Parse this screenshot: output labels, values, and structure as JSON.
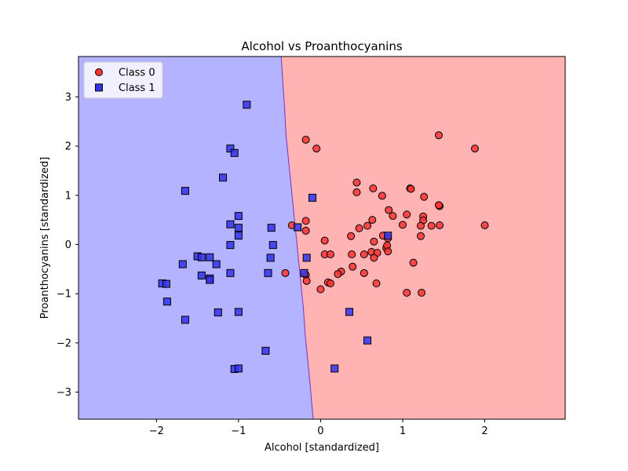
{
  "chart_data": {
    "type": "scatter",
    "title": "Alcohol vs Proanthocyanins",
    "xlabel": "Alcohol [standardized]",
    "ylabel": "Proanthocyanins [standardized]",
    "xlim": [
      -2.95,
      2.98
    ],
    "ylim": [
      -3.55,
      3.82
    ],
    "xticks": [
      -2,
      -1,
      0,
      1,
      2
    ],
    "yticks": [
      -3,
      -2,
      -1,
      0,
      1,
      2,
      3
    ],
    "legend_position": "top-left",
    "colors": {
      "class0_region": "#ffb3b3",
      "class1_region": "#b3b3ff",
      "class0_marker": "#ff3333",
      "class1_marker": "#3333ee",
      "boundary": "#7733cc",
      "marker_edge": "#000000"
    },
    "decision_boundary": [
      {
        "x": -0.48,
        "y": 3.82
      },
      {
        "x": -0.46,
        "y": 3.3
      },
      {
        "x": -0.44,
        "y": 2.8
      },
      {
        "x": -0.42,
        "y": 2.2
      },
      {
        "x": -0.39,
        "y": 1.7
      },
      {
        "x": -0.36,
        "y": 1.2
      },
      {
        "x": -0.33,
        "y": 0.7
      },
      {
        "x": -0.3,
        "y": 0.2
      },
      {
        "x": -0.27,
        "y": -0.3
      },
      {
        "x": -0.24,
        "y": -0.8
      },
      {
        "x": -0.21,
        "y": -1.3
      },
      {
        "x": -0.19,
        "y": -1.8
      },
      {
        "x": -0.16,
        "y": -2.3
      },
      {
        "x": -0.13,
        "y": -2.8
      },
      {
        "x": -0.11,
        "y": -3.2
      },
      {
        "x": -0.09,
        "y": -3.55
      }
    ],
    "series": [
      {
        "name": "Class 0",
        "marker": "circle",
        "points": [
          {
            "x": -0.18,
            "y": 2.13
          },
          {
            "x": -0.05,
            "y": 1.95
          },
          {
            "x": 1.44,
            "y": 2.22
          },
          {
            "x": 1.88,
            "y": 1.95
          },
          {
            "x": 0.44,
            "y": 1.26
          },
          {
            "x": 0.44,
            "y": 1.06
          },
          {
            "x": 0.64,
            "y": 1.14
          },
          {
            "x": 0.75,
            "y": 0.99
          },
          {
            "x": 1.09,
            "y": 1.14
          },
          {
            "x": 1.1,
            "y": 1.13
          },
          {
            "x": 1.26,
            "y": 0.97
          },
          {
            "x": 1.45,
            "y": 0.78
          },
          {
            "x": 1.44,
            "y": 0.8
          },
          {
            "x": 0.83,
            "y": 0.7
          },
          {
            "x": 0.88,
            "y": 0.58
          },
          {
            "x": 0.63,
            "y": 0.5
          },
          {
            "x": 1.05,
            "y": 0.61
          },
          {
            "x": 1.25,
            "y": 0.57
          },
          {
            "x": 1.25,
            "y": 0.49
          },
          {
            "x": 1.22,
            "y": 0.38
          },
          {
            "x": 1.35,
            "y": 0.38
          },
          {
            "x": 1.45,
            "y": 0.39
          },
          {
            "x": 2.0,
            "y": 0.39
          },
          {
            "x": 1.0,
            "y": 0.4
          },
          {
            "x": 0.57,
            "y": 0.38
          },
          {
            "x": 0.47,
            "y": 0.33
          },
          {
            "x": -0.35,
            "y": 0.39
          },
          {
            "x": -0.18,
            "y": 0.48
          },
          {
            "x": -0.18,
            "y": 0.28
          },
          {
            "x": 0.37,
            "y": 0.17
          },
          {
            "x": 0.76,
            "y": 0.18
          },
          {
            "x": 0.82,
            "y": 0.13
          },
          {
            "x": 0.05,
            "y": 0.08
          },
          {
            "x": 0.65,
            "y": 0.06
          },
          {
            "x": 0.8,
            "y": -0.07
          },
          {
            "x": 1.22,
            "y": 0.17
          },
          {
            "x": 0.81,
            "y": -0.02
          },
          {
            "x": 0.62,
            "y": -0.15
          },
          {
            "x": 0.69,
            "y": -0.17
          },
          {
            "x": 0.82,
            "y": -0.14
          },
          {
            "x": 0.53,
            "y": -0.2
          },
          {
            "x": 0.38,
            "y": -0.2
          },
          {
            "x": 0.05,
            "y": -0.2
          },
          {
            "x": 0.12,
            "y": -0.2
          },
          {
            "x": 0.65,
            "y": -0.27
          },
          {
            "x": 1.13,
            "y": -0.37
          },
          {
            "x": 0.39,
            "y": -0.45
          },
          {
            "x": 0.25,
            "y": -0.55
          },
          {
            "x": 0.21,
            "y": -0.6
          },
          {
            "x": 0.53,
            "y": -0.58
          },
          {
            "x": -0.43,
            "y": -0.58
          },
          {
            "x": -0.18,
            "y": -0.62
          },
          {
            "x": -0.17,
            "y": -0.74
          },
          {
            "x": 0.09,
            "y": -0.77
          },
          {
            "x": 0.12,
            "y": -0.79
          },
          {
            "x": 0.68,
            "y": -0.79
          },
          {
            "x": 0.0,
            "y": -0.91
          },
          {
            "x": 1.05,
            "y": -0.98
          },
          {
            "x": 1.23,
            "y": -0.98
          }
        ]
      },
      {
        "name": "Class 1",
        "marker": "square",
        "points": [
          {
            "x": -0.9,
            "y": 2.84
          },
          {
            "x": -1.1,
            "y": 1.95
          },
          {
            "x": -1.05,
            "y": 1.86
          },
          {
            "x": -1.19,
            "y": 1.36
          },
          {
            "x": -1.65,
            "y": 1.09
          },
          {
            "x": -0.1,
            "y": 0.95
          },
          {
            "x": -1.0,
            "y": 0.58
          },
          {
            "x": -1.1,
            "y": 0.41
          },
          {
            "x": -1.0,
            "y": 0.34
          },
          {
            "x": -0.6,
            "y": 0.34
          },
          {
            "x": -0.28,
            "y": 0.35
          },
          {
            "x": -1.0,
            "y": 0.18
          },
          {
            "x": 0.82,
            "y": 0.18
          },
          {
            "x": -1.1,
            "y": -0.01
          },
          {
            "x": -0.58,
            "y": -0.01
          },
          {
            "x": -1.5,
            "y": -0.24
          },
          {
            "x": -1.45,
            "y": -0.26
          },
          {
            "x": -1.35,
            "y": -0.26
          },
          {
            "x": -0.61,
            "y": -0.27
          },
          {
            "x": -0.17,
            "y": -0.27
          },
          {
            "x": -1.68,
            "y": -0.4
          },
          {
            "x": -1.27,
            "y": -0.4
          },
          {
            "x": -1.45,
            "y": -0.63
          },
          {
            "x": -1.1,
            "y": -0.58
          },
          {
            "x": -0.64,
            "y": -0.58
          },
          {
            "x": -0.2,
            "y": -0.58
          },
          {
            "x": -1.35,
            "y": -0.69
          },
          {
            "x": -1.35,
            "y": -0.72
          },
          {
            "x": -1.93,
            "y": -0.79
          },
          {
            "x": -1.88,
            "y": -0.8
          },
          {
            "x": -1.87,
            "y": -1.16
          },
          {
            "x": -1.25,
            "y": -1.38
          },
          {
            "x": -1.0,
            "y": -1.37
          },
          {
            "x": 0.35,
            "y": -1.37
          },
          {
            "x": -1.65,
            "y": -1.53
          },
          {
            "x": 0.57,
            "y": -1.95
          },
          {
            "x": -0.67,
            "y": -2.16
          },
          {
            "x": -1.05,
            "y": -2.53
          },
          {
            "x": -1.0,
            "y": -2.52
          },
          {
            "x": 0.17,
            "y": -2.52
          }
        ]
      }
    ]
  }
}
